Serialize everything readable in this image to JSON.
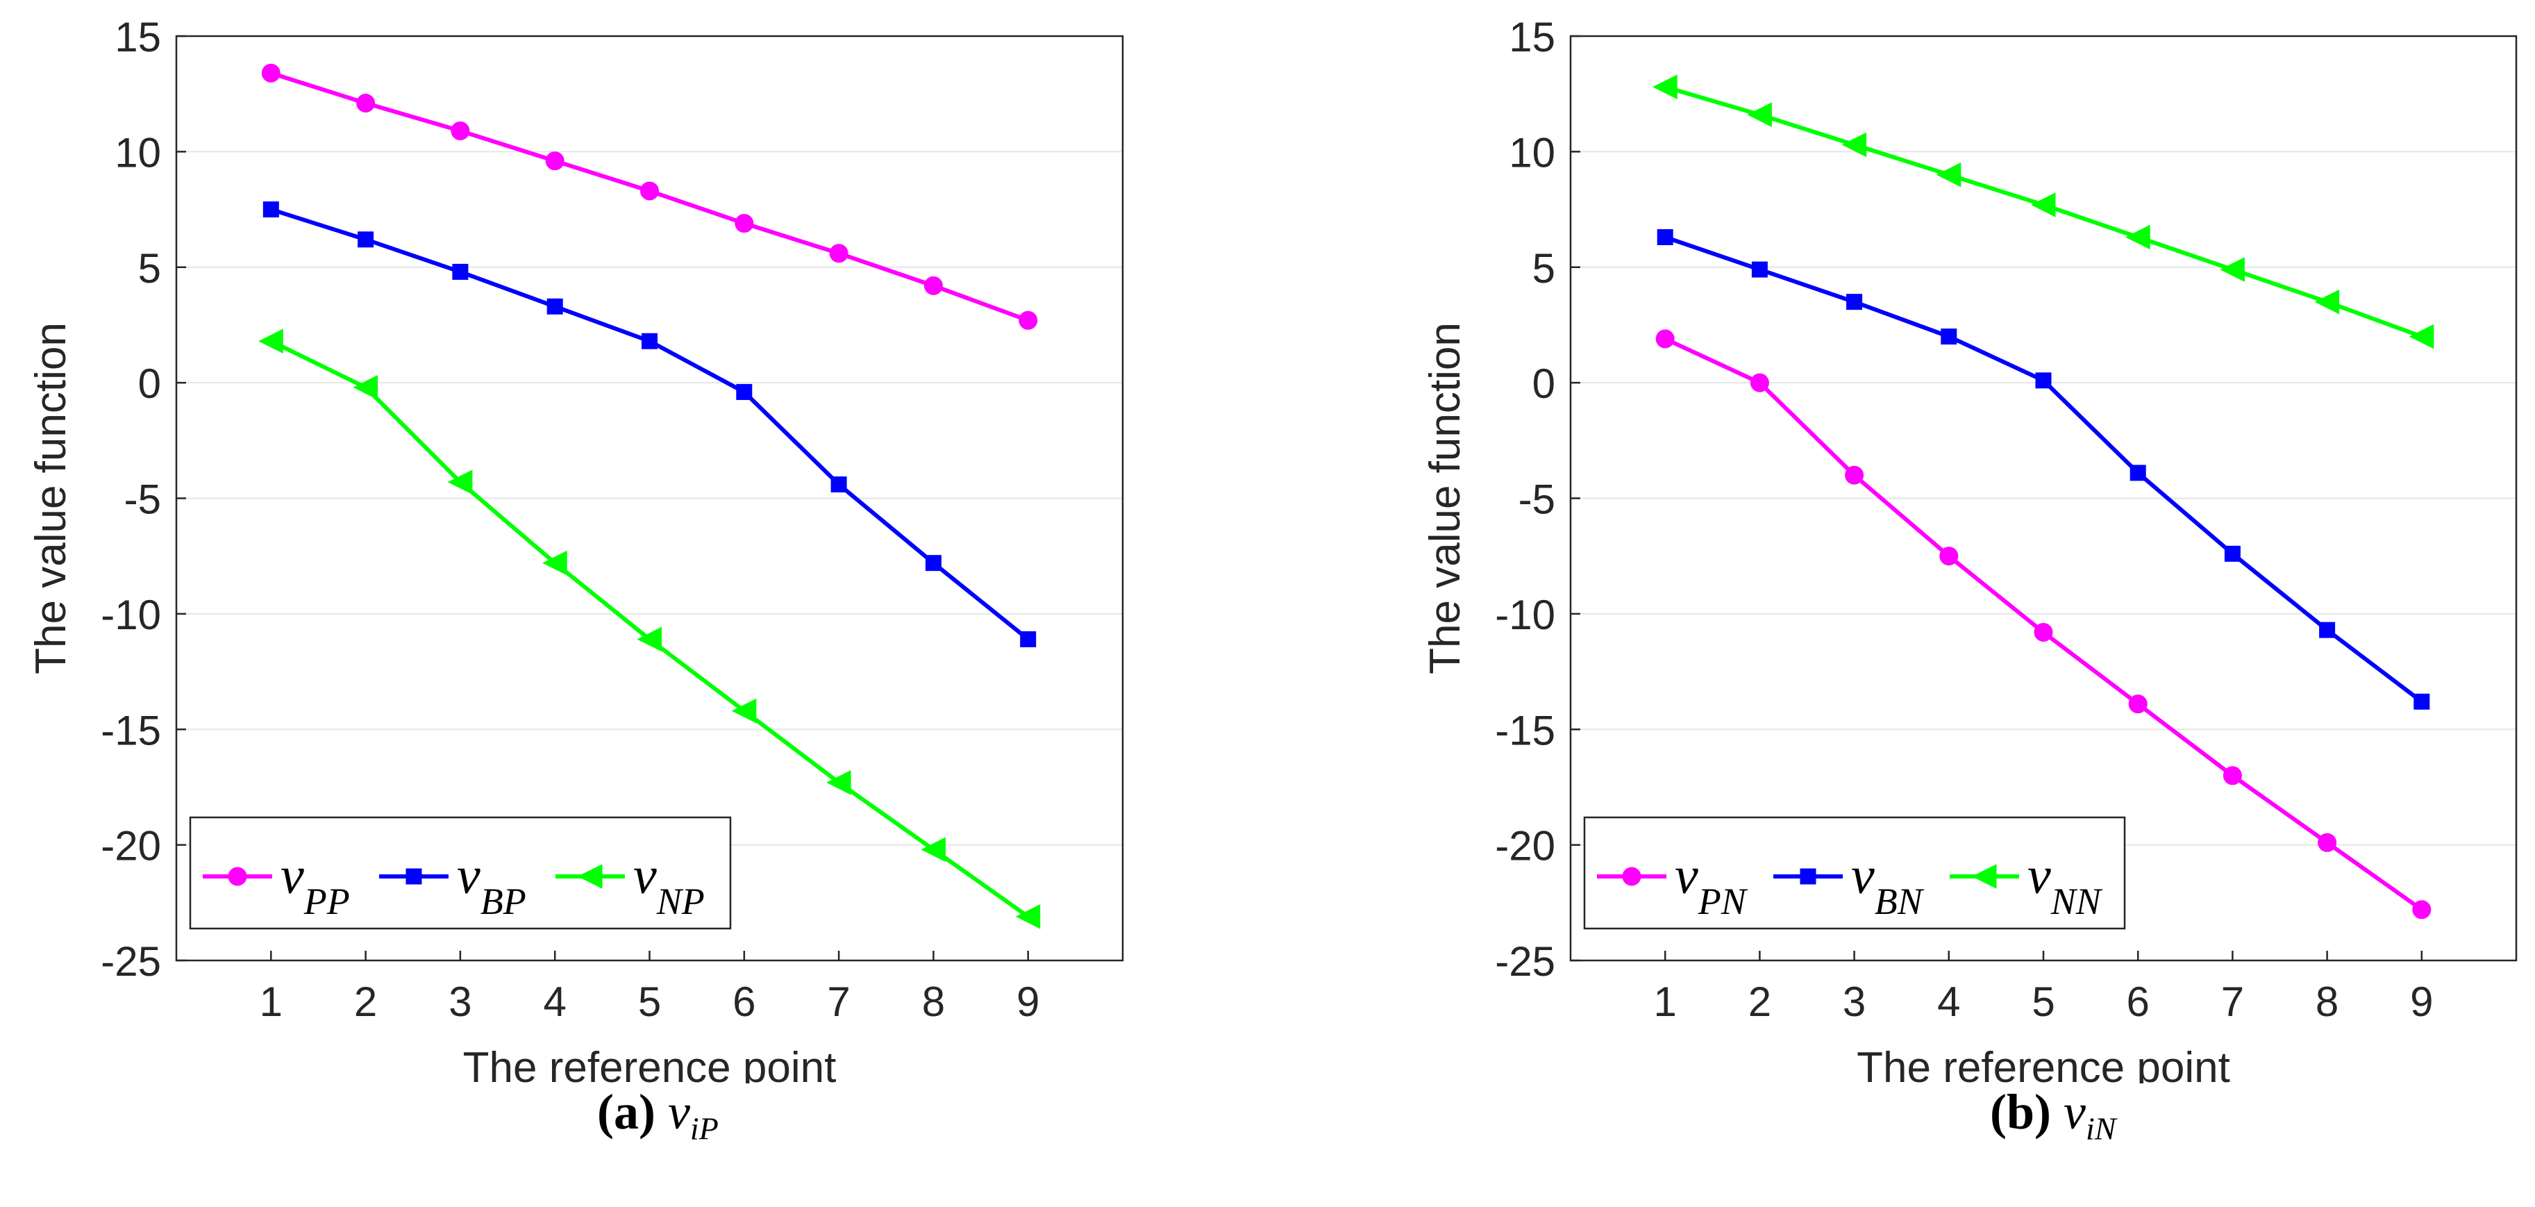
{
  "chart_data": [
    {
      "type": "line",
      "xlabel": "The reference point",
      "ylabel": "The value function",
      "x": [
        1,
        2,
        3,
        4,
        5,
        6,
        7,
        8,
        9
      ],
      "xticks": [
        "1",
        "2",
        "3",
        "4",
        "5",
        "6",
        "7",
        "8",
        "9"
      ],
      "yticks": [
        "15",
        "10",
        "5",
        "0",
        "-5",
        "-10",
        "-15",
        "-20",
        "-25"
      ],
      "xlim": [
        0,
        10
      ],
      "ylim": [
        -25,
        15
      ],
      "grid": "horizontal",
      "legend_position": "bottom-left",
      "caption": {
        "label": "(a)",
        "symbol": "v",
        "subscript": "iP"
      },
      "series": [
        {
          "name": "v",
          "sub": "PP",
          "color": "#ff00ff",
          "marker": "circle",
          "values": [
            13.4,
            12.1,
            10.9,
            9.6,
            8.3,
            6.9,
            5.6,
            4.2,
            2.7
          ]
        },
        {
          "name": "v",
          "sub": "BP",
          "color": "#0000ff",
          "marker": "square",
          "values": [
            7.5,
            6.2,
            4.8,
            3.3,
            1.8,
            -0.4,
            -4.4,
            -7.8,
            -11.1
          ]
        },
        {
          "name": "v",
          "sub": "NP",
          "color": "#00ff00",
          "marker": "triangle-left",
          "values": [
            1.8,
            -0.2,
            -4.3,
            -7.8,
            -11.1,
            -14.2,
            -17.3,
            -20.2,
            -23.1
          ]
        }
      ]
    },
    {
      "type": "line",
      "xlabel": "The reference point",
      "ylabel": "The value function",
      "x": [
        1,
        2,
        3,
        4,
        5,
        6,
        7,
        8,
        9
      ],
      "xticks": [
        "1",
        "2",
        "3",
        "4",
        "5",
        "6",
        "7",
        "8",
        "9"
      ],
      "yticks": [
        "15",
        "10",
        "5",
        "0",
        "-5",
        "-10",
        "-15",
        "-20",
        "-25"
      ],
      "xlim": [
        0,
        10
      ],
      "ylim": [
        -25,
        15
      ],
      "grid": "horizontal",
      "legend_position": "bottom-left",
      "caption": {
        "label": "(b)",
        "symbol": "v",
        "subscript": "iN"
      },
      "series": [
        {
          "name": "v",
          "sub": "PN",
          "color": "#ff00ff",
          "marker": "circle",
          "values": [
            1.9,
            0.0,
            -4.0,
            -7.5,
            -10.8,
            -13.9,
            -17.0,
            -19.9,
            -22.8
          ]
        },
        {
          "name": "v",
          "sub": "BN",
          "color": "#0000ff",
          "marker": "square",
          "values": [
            6.3,
            4.9,
            3.5,
            2.0,
            0.1,
            -3.9,
            -7.4,
            -10.7,
            -13.8
          ]
        },
        {
          "name": "v",
          "sub": "NN",
          "color": "#00ff00",
          "marker": "triangle-left",
          "values": [
            12.8,
            11.6,
            10.3,
            9.0,
            7.7,
            6.3,
            4.9,
            3.5,
            2.0
          ]
        }
      ]
    }
  ]
}
